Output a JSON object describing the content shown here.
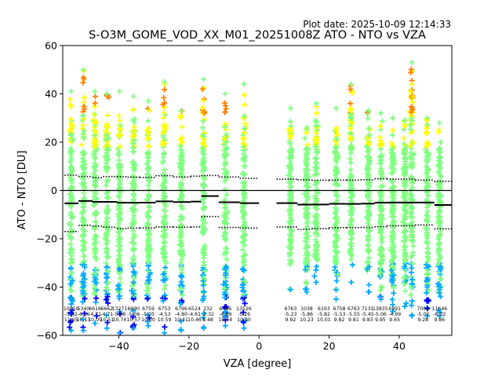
{
  "chart_data": {
    "type": "scatter",
    "plot_date": "Plot date: 2025-10-09 12:14:33",
    "title": "S-O3M_GOME_VOD_XX_M01_20251008Z ATO - NTO vs VZA",
    "xlabel": "VZA [degree]",
    "ylabel": "ATO - NTO [DU]",
    "xlim": [
      -56,
      55
    ],
    "ylim": [
      -60,
      60
    ],
    "xticks": [
      -40,
      -20,
      0,
      20,
      40
    ],
    "yticks": [
      -60,
      -40,
      -20,
      0,
      20,
      40,
      60
    ],
    "xtick_labels": [
      "−40",
      "−20",
      "0",
      "20",
      "40"
    ],
    "ytick_labels": [
      "−60",
      "−40",
      "−20",
      "0",
      "20",
      "40",
      "60"
    ],
    "zero_line": 0,
    "bins": [
      {
        "x": -53.6,
        "count": "10050",
        "mean": "-5.32",
        "std": "11.65",
        "bin_lo": -55.5,
        "bin_hi": -51.5,
        "upper": 6.3,
        "lower": -17.0
      },
      {
        "x": -50.1,
        "count": "5340",
        "mean": "-4.36",
        "std": "10.13",
        "bin_lo": -51.5,
        "bin_hi": -47.5,
        "upper": 5.8,
        "lower": -14.5
      },
      {
        "x": -46.8,
        "count": "6616",
        "mean": "-4.71",
        "std": "10.05",
        "bin_lo": -47.5,
        "bin_hi": -44.5,
        "upper": 5.3,
        "lower": -14.8
      },
      {
        "x": -43.4,
        "count": "6662",
        "mean": "-4.71",
        "std": "10.51",
        "bin_lo": -44.5,
        "bin_hi": -40.5,
        "upper": 5.8,
        "lower": -15.2
      },
      {
        "x": -39.8,
        "count": "13271",
        "mean": "-5.06",
        "std": "10.74",
        "bin_lo": -40.5,
        "bin_hi": -37.5,
        "upper": 5.7,
        "lower": -15.8
      },
      {
        "x": -35.8,
        "count": "6690",
        "mean": "-5.06",
        "std": "10.57",
        "bin_lo": -37.5,
        "bin_hi": -34.0,
        "upper": 5.5,
        "lower": -15.6
      },
      {
        "x": -31.6,
        "count": "6759",
        "mean": "-5.05",
        "std": "10.50",
        "bin_lo": -34.0,
        "bin_hi": -29.5,
        "upper": 5.4,
        "lower": -15.5
      },
      {
        "x": -27.0,
        "count": "6753",
        "mean": "-4.53",
        "std": "10.59",
        "bin_lo": -29.5,
        "bin_hi": -24.5,
        "upper": 6.1,
        "lower": -15.1
      },
      {
        "x": -22.2,
        "count": "6796",
        "mean": "-4.80",
        "std": "10.41",
        "bin_lo": -24.5,
        "bin_hi": -19.5,
        "upper": 5.6,
        "lower": -15.2
      },
      {
        "x": -18.4,
        "count": "6524",
        "mean": "-4.61",
        "std": "10.46",
        "bin_lo": -19.5,
        "bin_hi": -16.5,
        "upper": 5.9,
        "lower": -15.1
      },
      {
        "x": -14.6,
        "count": "232",
        "mean": "-2.32",
        "std": "8.48",
        "bin_lo": -16.5,
        "bin_hi": -11.5,
        "upper": 6.2,
        "lower": -10.8
      },
      {
        "x": -9.6,
        "count": "6766",
        "mean": "-4.89",
        "std": "10.44",
        "bin_lo": -11.5,
        "bin_hi": -5.5,
        "upper": 5.6,
        "lower": -15.3
      },
      {
        "x": -4.3,
        "count": "13526",
        "mean": "-5.26",
        "std": "10.30",
        "bin_lo": -5.5,
        "bin_hi": 0.0,
        "upper": 5.0,
        "lower": -15.6
      },
      {
        "x": 9.0,
        "count": "6763",
        "mean": "-5.23",
        "std": "9.92",
        "bin_lo": 5.0,
        "bin_hi": 11.0,
        "upper": 4.7,
        "lower": -15.1
      },
      {
        "x": 13.6,
        "count": "1038",
        "mean": "-5.86",
        "std": "10.23",
        "bin_lo": 11.0,
        "bin_hi": 15.0,
        "upper": 4.4,
        "lower": -16.1
      },
      {
        "x": 18.5,
        "count": "6193",
        "mean": "-5.82",
        "std": "10.01",
        "bin_lo": 15.0,
        "bin_hi": 20.0,
        "upper": 4.2,
        "lower": -15.8
      },
      {
        "x": 22.9,
        "count": "6758",
        "mean": "-5.53",
        "std": "9.82",
        "bin_lo": 20.0,
        "bin_hi": 25.0,
        "upper": 4.3,
        "lower": -15.4
      },
      {
        "x": 27.0,
        "count": "6763",
        "mean": "-5.55",
        "std": "9.81",
        "bin_lo": 25.0,
        "bin_hi": 29.0,
        "upper": 4.3,
        "lower": -15.4
      },
      {
        "x": 31.0,
        "count": "7131",
        "mean": "-5.45",
        "std": "9.83",
        "bin_lo": 29.0,
        "bin_hi": 33.0,
        "upper": 4.4,
        "lower": -15.3
      },
      {
        "x": 34.6,
        "count": "13835",
        "mean": "-5.06",
        "std": "9.95",
        "bin_lo": 33.0,
        "bin_hi": 36.5,
        "upper": 4.9,
        "lower": -15.0
      },
      {
        "x": 38.7,
        "count": "6991",
        "mean": "-4.99",
        "std": "9.65",
        "bin_lo": 36.5,
        "bin_hi": 44.5,
        "upper": 4.7,
        "lower": -14.6
      },
      {
        "x": 46.8,
        "count": "7004",
        "mean": "-5.02",
        "std": "9.28",
        "bin_lo": 44.5,
        "bin_hi": 50.0,
        "upper": 4.3,
        "lower": -14.3
      },
      {
        "x": 51.5,
        "count": "11646",
        "mean": "-6.02",
        "std": "9.86",
        "bin_lo": 50.0,
        "bin_hi": 55.0,
        "upper": 3.8,
        "lower": -15.9
      }
    ],
    "scatter_columns": [
      {
        "x": -53.6,
        "ymin": -58,
        "ymax": 41
      },
      {
        "x": -50.1,
        "ymin": -58,
        "ymax": 50
      },
      {
        "x": -46.8,
        "ymin": -55,
        "ymax": 41
      },
      {
        "x": -43.4,
        "ymin": -57,
        "ymax": 40
      },
      {
        "x": -39.8,
        "ymin": -59,
        "ymax": 41
      },
      {
        "x": -35.8,
        "ymin": -57,
        "ymax": 39
      },
      {
        "x": -31.6,
        "ymin": -56,
        "ymax": 37
      },
      {
        "x": -27.0,
        "ymin": -59,
        "ymax": 45
      },
      {
        "x": -22.2,
        "ymin": -58,
        "ymax": 33
      },
      {
        "x": -15.8,
        "ymin": -57,
        "ymax": 46
      },
      {
        "x": -9.6,
        "ymin": -56,
        "ymax": 40
      },
      {
        "x": -4.3,
        "ymin": -57,
        "ymax": 44
      },
      {
        "x": 9.0,
        "ymin": -41,
        "ymax": 34
      },
      {
        "x": 13.6,
        "ymin": -42,
        "ymax": 26
      },
      {
        "x": 16.3,
        "ymin": -38,
        "ymax": 36
      },
      {
        "x": 22.0,
        "ymin": -45,
        "ymax": 34
      },
      {
        "x": 26.3,
        "ymin": -38,
        "ymax": 44
      },
      {
        "x": 31.2,
        "ymin": -42,
        "ymax": 33
      },
      {
        "x": 34.8,
        "ymin": -45,
        "ymax": 32
      },
      {
        "x": 38.2,
        "ymin": -50,
        "ymax": 30
      },
      {
        "x": 41.6,
        "ymin": -48,
        "ymax": 29
      },
      {
        "x": 43.6,
        "ymin": -52,
        "ymax": 53
      },
      {
        "x": 48.0,
        "ymin": -52,
        "ymax": 30
      },
      {
        "x": 51.5,
        "ymin": -52,
        "ymax": 28
      }
    ],
    "colors": {
      "low": "#0000ff",
      "midlow": "#00aaff",
      "mid": "#80ff80",
      "midhigh": "#ffff00",
      "high": "#ff8000",
      "zero_line": "#000000",
      "mean_line": "#000000"
    }
  }
}
